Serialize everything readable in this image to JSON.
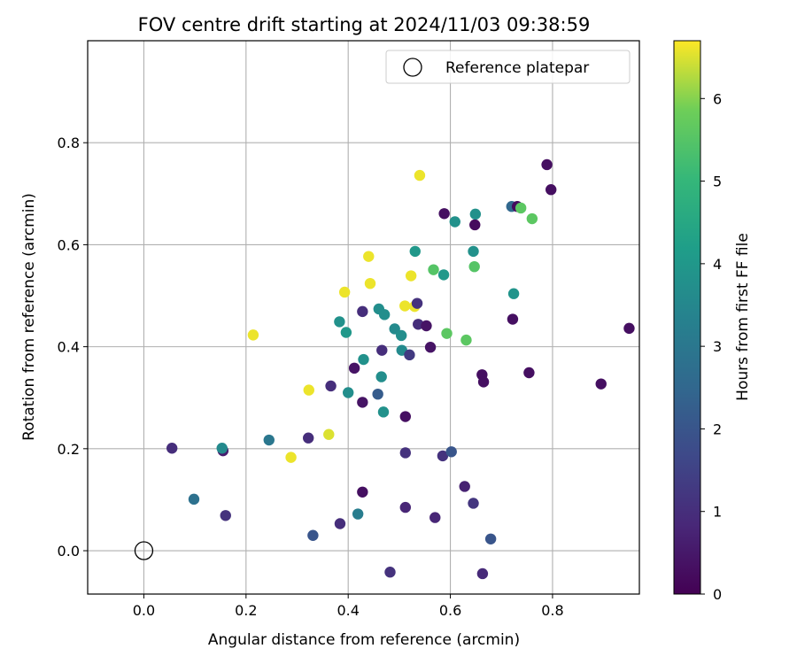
{
  "chart_data": {
    "type": "scatter",
    "title": "FOV centre drift starting at 2024/11/03 09:38:59",
    "xlabel": "Angular distance from reference (arcmin)",
    "ylabel": "Rotation from reference (arcmin)",
    "xlim": [
      -0.11,
      0.97
    ],
    "ylim": [
      -0.085,
      1.0
    ],
    "xticks": [
      0.0,
      0.2,
      0.4,
      0.6,
      0.8
    ],
    "xtick_labels": [
      "0.0",
      "0.2",
      "0.4",
      "0.6",
      "0.8"
    ],
    "yticks": [
      0.0,
      0.2,
      0.4,
      0.6,
      0.8
    ],
    "ytick_labels": [
      "0.0",
      "0.2",
      "0.4",
      "0.6",
      "0.8"
    ],
    "grid": true,
    "legend": {
      "placement": "top-right",
      "entries": [
        "Reference platepar"
      ]
    },
    "reference_point": {
      "x": 0.0,
      "y": 0.0,
      "marker": "open-circle"
    },
    "colorbar": {
      "label": "Hours from first FF file",
      "colormap": "viridis",
      "range": [
        0,
        6.7
      ],
      "ticks": [
        0,
        1,
        2,
        3,
        4,
        5,
        6
      ],
      "tick_labels": [
        "0",
        "1",
        "2",
        "3",
        "4",
        "5",
        "6"
      ]
    },
    "points": [
      {
        "x": 0.055,
        "y": 0.201,
        "hours": 1.0
      },
      {
        "x": 0.098,
        "y": 0.101,
        "hours": 2.8
      },
      {
        "x": 0.155,
        "y": 0.196,
        "hours": 0.6
      },
      {
        "x": 0.153,
        "y": 0.201,
        "hours": 3.6
      },
      {
        "x": 0.16,
        "y": 0.069,
        "hours": 1.1
      },
      {
        "x": 0.214,
        "y": 0.423,
        "hours": 6.6
      },
      {
        "x": 0.245,
        "y": 0.217,
        "hours": 3.0
      },
      {
        "x": 0.288,
        "y": 0.183,
        "hours": 6.6
      },
      {
        "x": 0.322,
        "y": 0.221,
        "hours": 1.0
      },
      {
        "x": 0.323,
        "y": 0.315,
        "hours": 6.6
      },
      {
        "x": 0.331,
        "y": 0.03,
        "hours": 2.0
      },
      {
        "x": 0.362,
        "y": 0.228,
        "hours": 6.5
      },
      {
        "x": 0.366,
        "y": 0.323,
        "hours": 1.0
      },
      {
        "x": 0.384,
        "y": 0.053,
        "hours": 1.0
      },
      {
        "x": 0.383,
        "y": 0.449,
        "hours": 3.8
      },
      {
        "x": 0.393,
        "y": 0.507,
        "hours": 6.6
      },
      {
        "x": 0.396,
        "y": 0.428,
        "hours": 4.0
      },
      {
        "x": 0.4,
        "y": 0.31,
        "hours": 3.7
      },
      {
        "x": 0.412,
        "y": 0.358,
        "hours": 0.4
      },
      {
        "x": 0.419,
        "y": 0.072,
        "hours": 3.2
      },
      {
        "x": 0.428,
        "y": 0.291,
        "hours": 0.4
      },
      {
        "x": 0.428,
        "y": 0.115,
        "hours": 0.3
      },
      {
        "x": 0.428,
        "y": 0.469,
        "hours": 1.0
      },
      {
        "x": 0.43,
        "y": 0.375,
        "hours": 3.8
      },
      {
        "x": 0.44,
        "y": 0.577,
        "hours": 6.6
      },
      {
        "x": 0.443,
        "y": 0.524,
        "hours": 6.6
      },
      {
        "x": 0.458,
        "y": 0.307,
        "hours": 2.2
      },
      {
        "x": 0.46,
        "y": 0.474,
        "hours": 3.7
      },
      {
        "x": 0.465,
        "y": 0.341,
        "hours": 3.7
      },
      {
        "x": 0.466,
        "y": 0.393,
        "hours": 1.0
      },
      {
        "x": 0.469,
        "y": 0.272,
        "hours": 3.8
      },
      {
        "x": 0.471,
        "y": 0.463,
        "hours": 3.7
      },
      {
        "x": 0.482,
        "y": -0.042,
        "hours": 1.1
      },
      {
        "x": 0.491,
        "y": 0.435,
        "hours": 3.6
      },
      {
        "x": 0.504,
        "y": 0.422,
        "hours": 3.7
      },
      {
        "x": 0.505,
        "y": 0.393,
        "hours": 3.6
      },
      {
        "x": 0.511,
        "y": 0.48,
        "hours": 6.6
      },
      {
        "x": 0.512,
        "y": 0.192,
        "hours": 1.1
      },
      {
        "x": 0.512,
        "y": 0.263,
        "hours": 0.3
      },
      {
        "x": 0.512,
        "y": 0.085,
        "hours": 0.8
      },
      {
        "x": 0.52,
        "y": 0.384,
        "hours": 1.3
      },
      {
        "x": 0.523,
        "y": 0.539,
        "hours": 6.6
      },
      {
        "x": 0.53,
        "y": 0.479,
        "hours": 6.6
      },
      {
        "x": 0.531,
        "y": 0.587,
        "hours": 4.0
      },
      {
        "x": 0.535,
        "y": 0.485,
        "hours": 1.1
      },
      {
        "x": 0.537,
        "y": 0.444,
        "hours": 1.0
      },
      {
        "x": 0.54,
        "y": 0.736,
        "hours": 6.6
      },
      {
        "x": 0.553,
        "y": 0.441,
        "hours": 0.4
      },
      {
        "x": 0.561,
        "y": 0.399,
        "hours": 0.4
      },
      {
        "x": 0.567,
        "y": 0.551,
        "hours": 5.5
      },
      {
        "x": 0.57,
        "y": 0.065,
        "hours": 0.8
      },
      {
        "x": 0.585,
        "y": 0.186,
        "hours": 1.1
      },
      {
        "x": 0.587,
        "y": 0.541,
        "hours": 4.0
      },
      {
        "x": 0.588,
        "y": 0.661,
        "hours": 0.3
      },
      {
        "x": 0.593,
        "y": 0.426,
        "hours": 5.6
      },
      {
        "x": 0.602,
        "y": 0.194,
        "hours": 2.0
      },
      {
        "x": 0.609,
        "y": 0.645,
        "hours": 3.8
      },
      {
        "x": 0.628,
        "y": 0.126,
        "hours": 0.7
      },
      {
        "x": 0.631,
        "y": 0.413,
        "hours": 5.6
      },
      {
        "x": 0.645,
        "y": 0.587,
        "hours": 3.8
      },
      {
        "x": 0.645,
        "y": 0.093,
        "hours": 1.2
      },
      {
        "x": 0.647,
        "y": 0.557,
        "hours": 5.5
      },
      {
        "x": 0.648,
        "y": 0.639,
        "hours": 0.2
      },
      {
        "x": 0.649,
        "y": 0.66,
        "hours": 3.8
      },
      {
        "x": 0.662,
        "y": 0.345,
        "hours": 0.3
      },
      {
        "x": 0.663,
        "y": -0.045,
        "hours": 0.9
      },
      {
        "x": 0.665,
        "y": 0.331,
        "hours": 0.3
      },
      {
        "x": 0.679,
        "y": 0.023,
        "hours": 2.0
      },
      {
        "x": 0.72,
        "y": 0.675,
        "hours": 2.5
      },
      {
        "x": 0.722,
        "y": 0.454,
        "hours": 0.3
      },
      {
        "x": 0.724,
        "y": 0.504,
        "hours": 3.9
      },
      {
        "x": 0.731,
        "y": 0.675,
        "hours": 0.2
      },
      {
        "x": 0.738,
        "y": 0.672,
        "hours": 5.6
      },
      {
        "x": 0.754,
        "y": 0.349,
        "hours": 0.3
      },
      {
        "x": 0.76,
        "y": 0.651,
        "hours": 5.6
      },
      {
        "x": 0.789,
        "y": 0.757,
        "hours": 0.3
      },
      {
        "x": 0.797,
        "y": 0.708,
        "hours": 0.3
      },
      {
        "x": 0.895,
        "y": 0.327,
        "hours": 0.3
      },
      {
        "x": 0.95,
        "y": 0.436,
        "hours": 0.3
      }
    ]
  }
}
